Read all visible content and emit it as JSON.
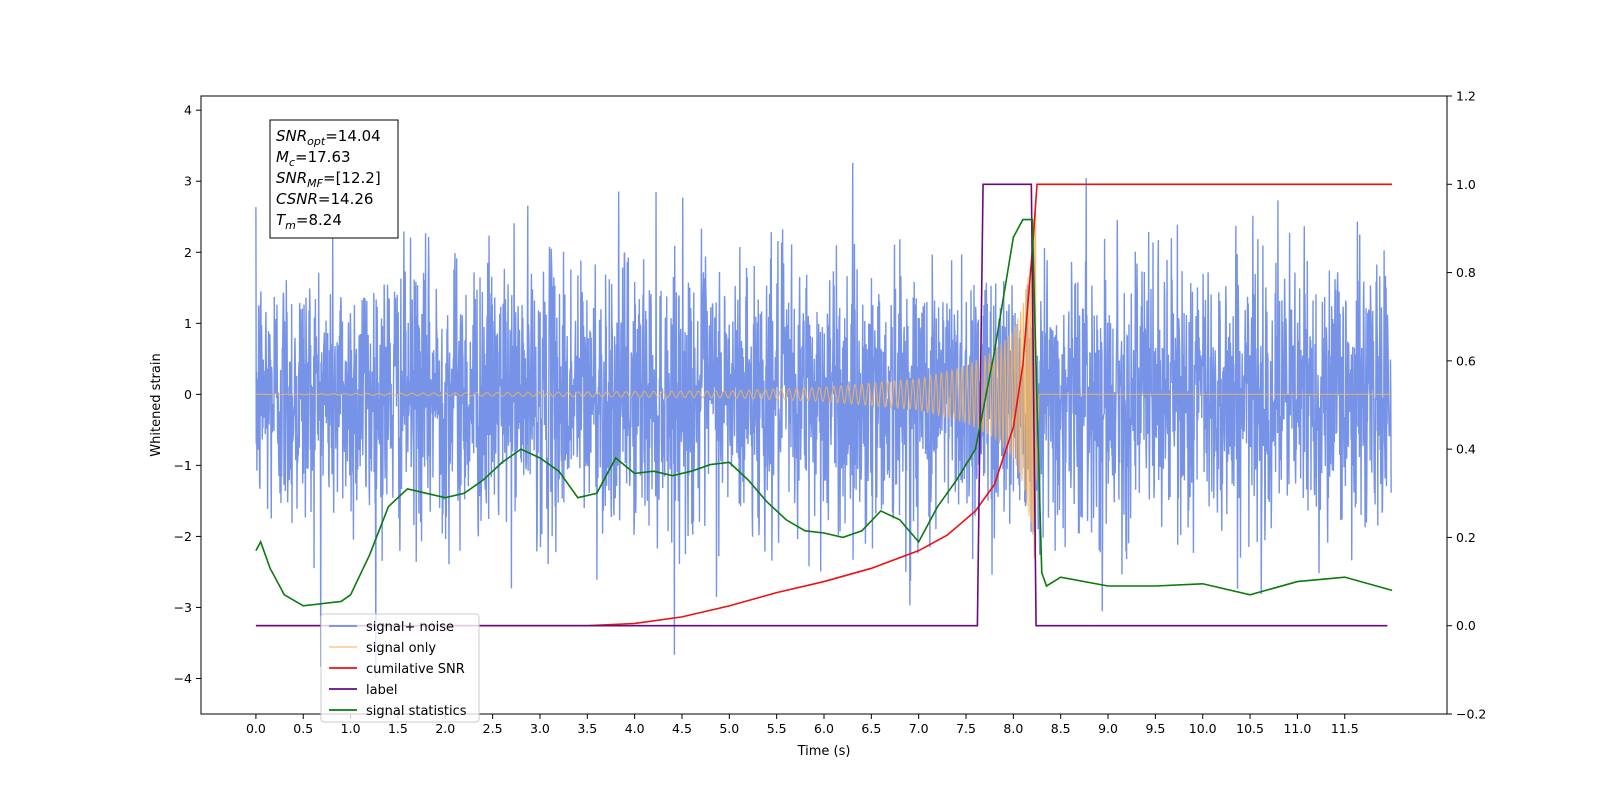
{
  "chart_data": {
    "type": "line",
    "title": "",
    "xlabel": "Time (s)",
    "ylabel": "Whitened strain",
    "xlim": [
      -0.58,
      12.58
    ],
    "ylim": [
      -4.5,
      4.2
    ],
    "y2lim": [
      -0.2,
      1.2
    ],
    "grid": false,
    "legend_position": "bottom-left",
    "x_ticks": [
      0.0,
      0.5,
      1.0,
      1.5,
      2.0,
      2.5,
      3.0,
      3.5,
      4.0,
      4.5,
      5.0,
      5.5,
      6.0,
      6.5,
      7.0,
      7.5,
      8.0,
      8.5,
      9.0,
      9.5,
      10.0,
      10.5,
      11.0,
      11.5
    ],
    "x_tick_labels": [
      "0.0",
      "0.5",
      "1.0",
      "1.5",
      "2.0",
      "2.5",
      "3.0",
      "3.5",
      "4.0",
      "4.5",
      "5.0",
      "5.5",
      "6.0",
      "6.5",
      "7.0",
      "7.5",
      "8.0",
      "8.5",
      "9.0",
      "9.5",
      "10.0",
      "10.5",
      "11.0",
      "11.5"
    ],
    "y_ticks": [
      -4,
      -3,
      -2,
      -1,
      0,
      1,
      2,
      3,
      4
    ],
    "y_tick_labels": [
      "−4",
      "−3",
      "−2",
      "−1",
      "0",
      "1",
      "2",
      "3",
      "4"
    ],
    "y2_ticks": [
      -0.2,
      0.0,
      0.2,
      0.4,
      0.6,
      0.8,
      1.0,
      1.2
    ],
    "y2_tick_labels": [
      "−0.2",
      "0.0",
      "0.2",
      "0.4",
      "0.6",
      "0.8",
      "1.0",
      "1.2"
    ],
    "annotation": [
      {
        "name": "SNR",
        "sub": "opt",
        "rest": "=14.04"
      },
      {
        "name": "M",
        "sub": "c",
        "rest": "=17.63"
      },
      {
        "name": "SNR",
        "sub": "MF",
        "rest": "=[12.2]"
      },
      {
        "name": "CSNR",
        "sub": "",
        "rest": "=14.26"
      },
      {
        "name": "T",
        "sub": "m",
        "rest": "=8.24"
      }
    ],
    "series": [
      {
        "name": "signal+ noise",
        "axis": "left",
        "color": "#6f8de6",
        "description": "whitened strain noise, roughly gaussian, sigma ~1, range -4.1 to 3.8, spanning 0 to 12 s",
        "x_range": [
          0.0,
          11.99
        ],
        "std": 1.0
      },
      {
        "name": "signal only",
        "axis": "left",
        "color": "#f5b35c",
        "description": "chirp waveform, amplitude grows toward merger then rings down",
        "x": [
          0.0,
          5.0,
          6.0,
          7.0,
          7.5,
          7.8,
          8.0,
          8.1,
          8.2,
          8.24,
          8.27,
          12.0
        ],
        "amplitude": [
          0.0,
          0.05,
          0.1,
          0.22,
          0.4,
          0.62,
          0.9,
          1.25,
          2.0,
          2.7,
          0.0,
          0.0
        ]
      },
      {
        "name": "cumilative SNR",
        "axis": "right",
        "color": "#ee1010",
        "x": [
          0.0,
          3.0,
          3.5,
          4.0,
          4.5,
          5.0,
          5.5,
          6.0,
          6.5,
          7.0,
          7.3,
          7.6,
          7.8,
          8.0,
          8.1,
          8.2,
          8.25,
          8.27,
          12.0
        ],
        "y": [
          0.0,
          0.0,
          0.0,
          0.005,
          0.02,
          0.045,
          0.075,
          0.1,
          0.13,
          0.17,
          0.205,
          0.26,
          0.32,
          0.45,
          0.59,
          0.85,
          1.0,
          1.0,
          1.0
        ]
      },
      {
        "name": "label",
        "axis": "right",
        "color": "#6a0a80",
        "x": [
          0.0,
          7.62,
          7.68,
          8.19,
          8.24,
          11.95
        ],
        "y": [
          0.0,
          0.0,
          1.0,
          1.0,
          0.0,
          0.0
        ]
      },
      {
        "name": "signal statistics",
        "axis": "right",
        "color": "#0c7a0c",
        "x": [
          0.0,
          0.05,
          0.15,
          0.3,
          0.5,
          0.7,
          0.9,
          1.0,
          1.2,
          1.4,
          1.6,
          1.8,
          2.0,
          2.2,
          2.4,
          2.6,
          2.8,
          3.0,
          3.2,
          3.4,
          3.6,
          3.8,
          4.0,
          4.2,
          4.4,
          4.6,
          4.8,
          5.0,
          5.2,
          5.4,
          5.6,
          5.8,
          6.0,
          6.2,
          6.4,
          6.6,
          6.8,
          7.0,
          7.2,
          7.4,
          7.6,
          7.8,
          7.9,
          8.0,
          8.1,
          8.2,
          8.25,
          8.3,
          8.35,
          8.5,
          9.0,
          9.5,
          10.0,
          10.5,
          11.0,
          11.5,
          12.0
        ],
        "y": [
          0.17,
          0.19,
          0.13,
          0.07,
          0.045,
          0.05,
          0.055,
          0.07,
          0.16,
          0.27,
          0.31,
          0.3,
          0.29,
          0.3,
          0.33,
          0.37,
          0.4,
          0.38,
          0.35,
          0.29,
          0.3,
          0.38,
          0.345,
          0.35,
          0.34,
          0.35,
          0.365,
          0.37,
          0.33,
          0.28,
          0.24,
          0.215,
          0.21,
          0.2,
          0.215,
          0.26,
          0.24,
          0.19,
          0.27,
          0.33,
          0.4,
          0.62,
          0.75,
          0.88,
          0.92,
          0.92,
          0.5,
          0.12,
          0.09,
          0.11,
          0.09,
          0.09,
          0.095,
          0.07,
          0.1,
          0.11,
          0.08
        ]
      }
    ]
  }
}
